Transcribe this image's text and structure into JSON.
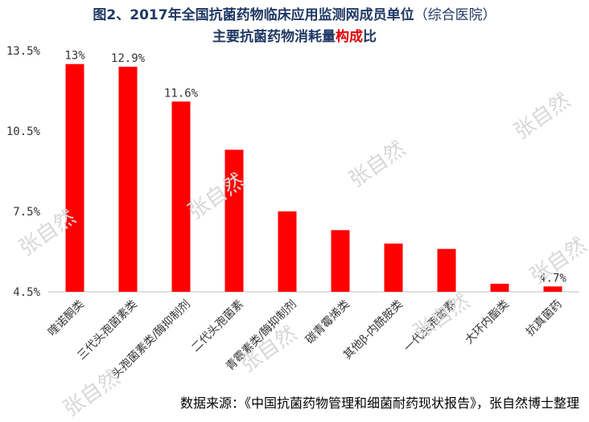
{
  "title": {
    "line1_main": "图2、2017年全国抗菌药物临床应用监测网成员单位",
    "line1_paren": "（综合医院）",
    "line2_pre": "主要抗菌药物消耗量",
    "line2_highlight": "构成",
    "line2_post": "比"
  },
  "watermark": "张自然",
  "source": "数据来源：《中国抗菌药物管理和细菌耐药现状报告》，张自然博士整理",
  "colors": {
    "bar": "#ff0000",
    "title": "#1f3864",
    "highlight": "#e00000"
  },
  "chart_data": {
    "type": "bar",
    "categories": [
      "喹诺酮类",
      "三代头孢菌素类",
      "头孢菌素类/酶抑制剂",
      "二代头孢菌素",
      "青霉素类/酶抑制剂",
      "碳青霉烯类",
      "其他β-内酰胺类",
      "一代头孢菌素",
      "大环内酯类",
      "抗真菌药"
    ],
    "values": [
      13.0,
      12.9,
      11.6,
      9.8,
      7.5,
      6.8,
      6.3,
      6.1,
      4.8,
      4.7
    ],
    "data_labels": [
      "13%",
      "12.9%",
      "11.6%",
      "",
      "",
      "",
      "",
      "",
      "",
      "4.7%"
    ],
    "ylim": [
      4.5,
      13.5
    ],
    "yticks": [
      4.5,
      7.5,
      10.5,
      13.5
    ],
    "ytick_labels": [
      "4.5%",
      "7.5%",
      "10.5%",
      "13.5%"
    ],
    "grid": false
  }
}
